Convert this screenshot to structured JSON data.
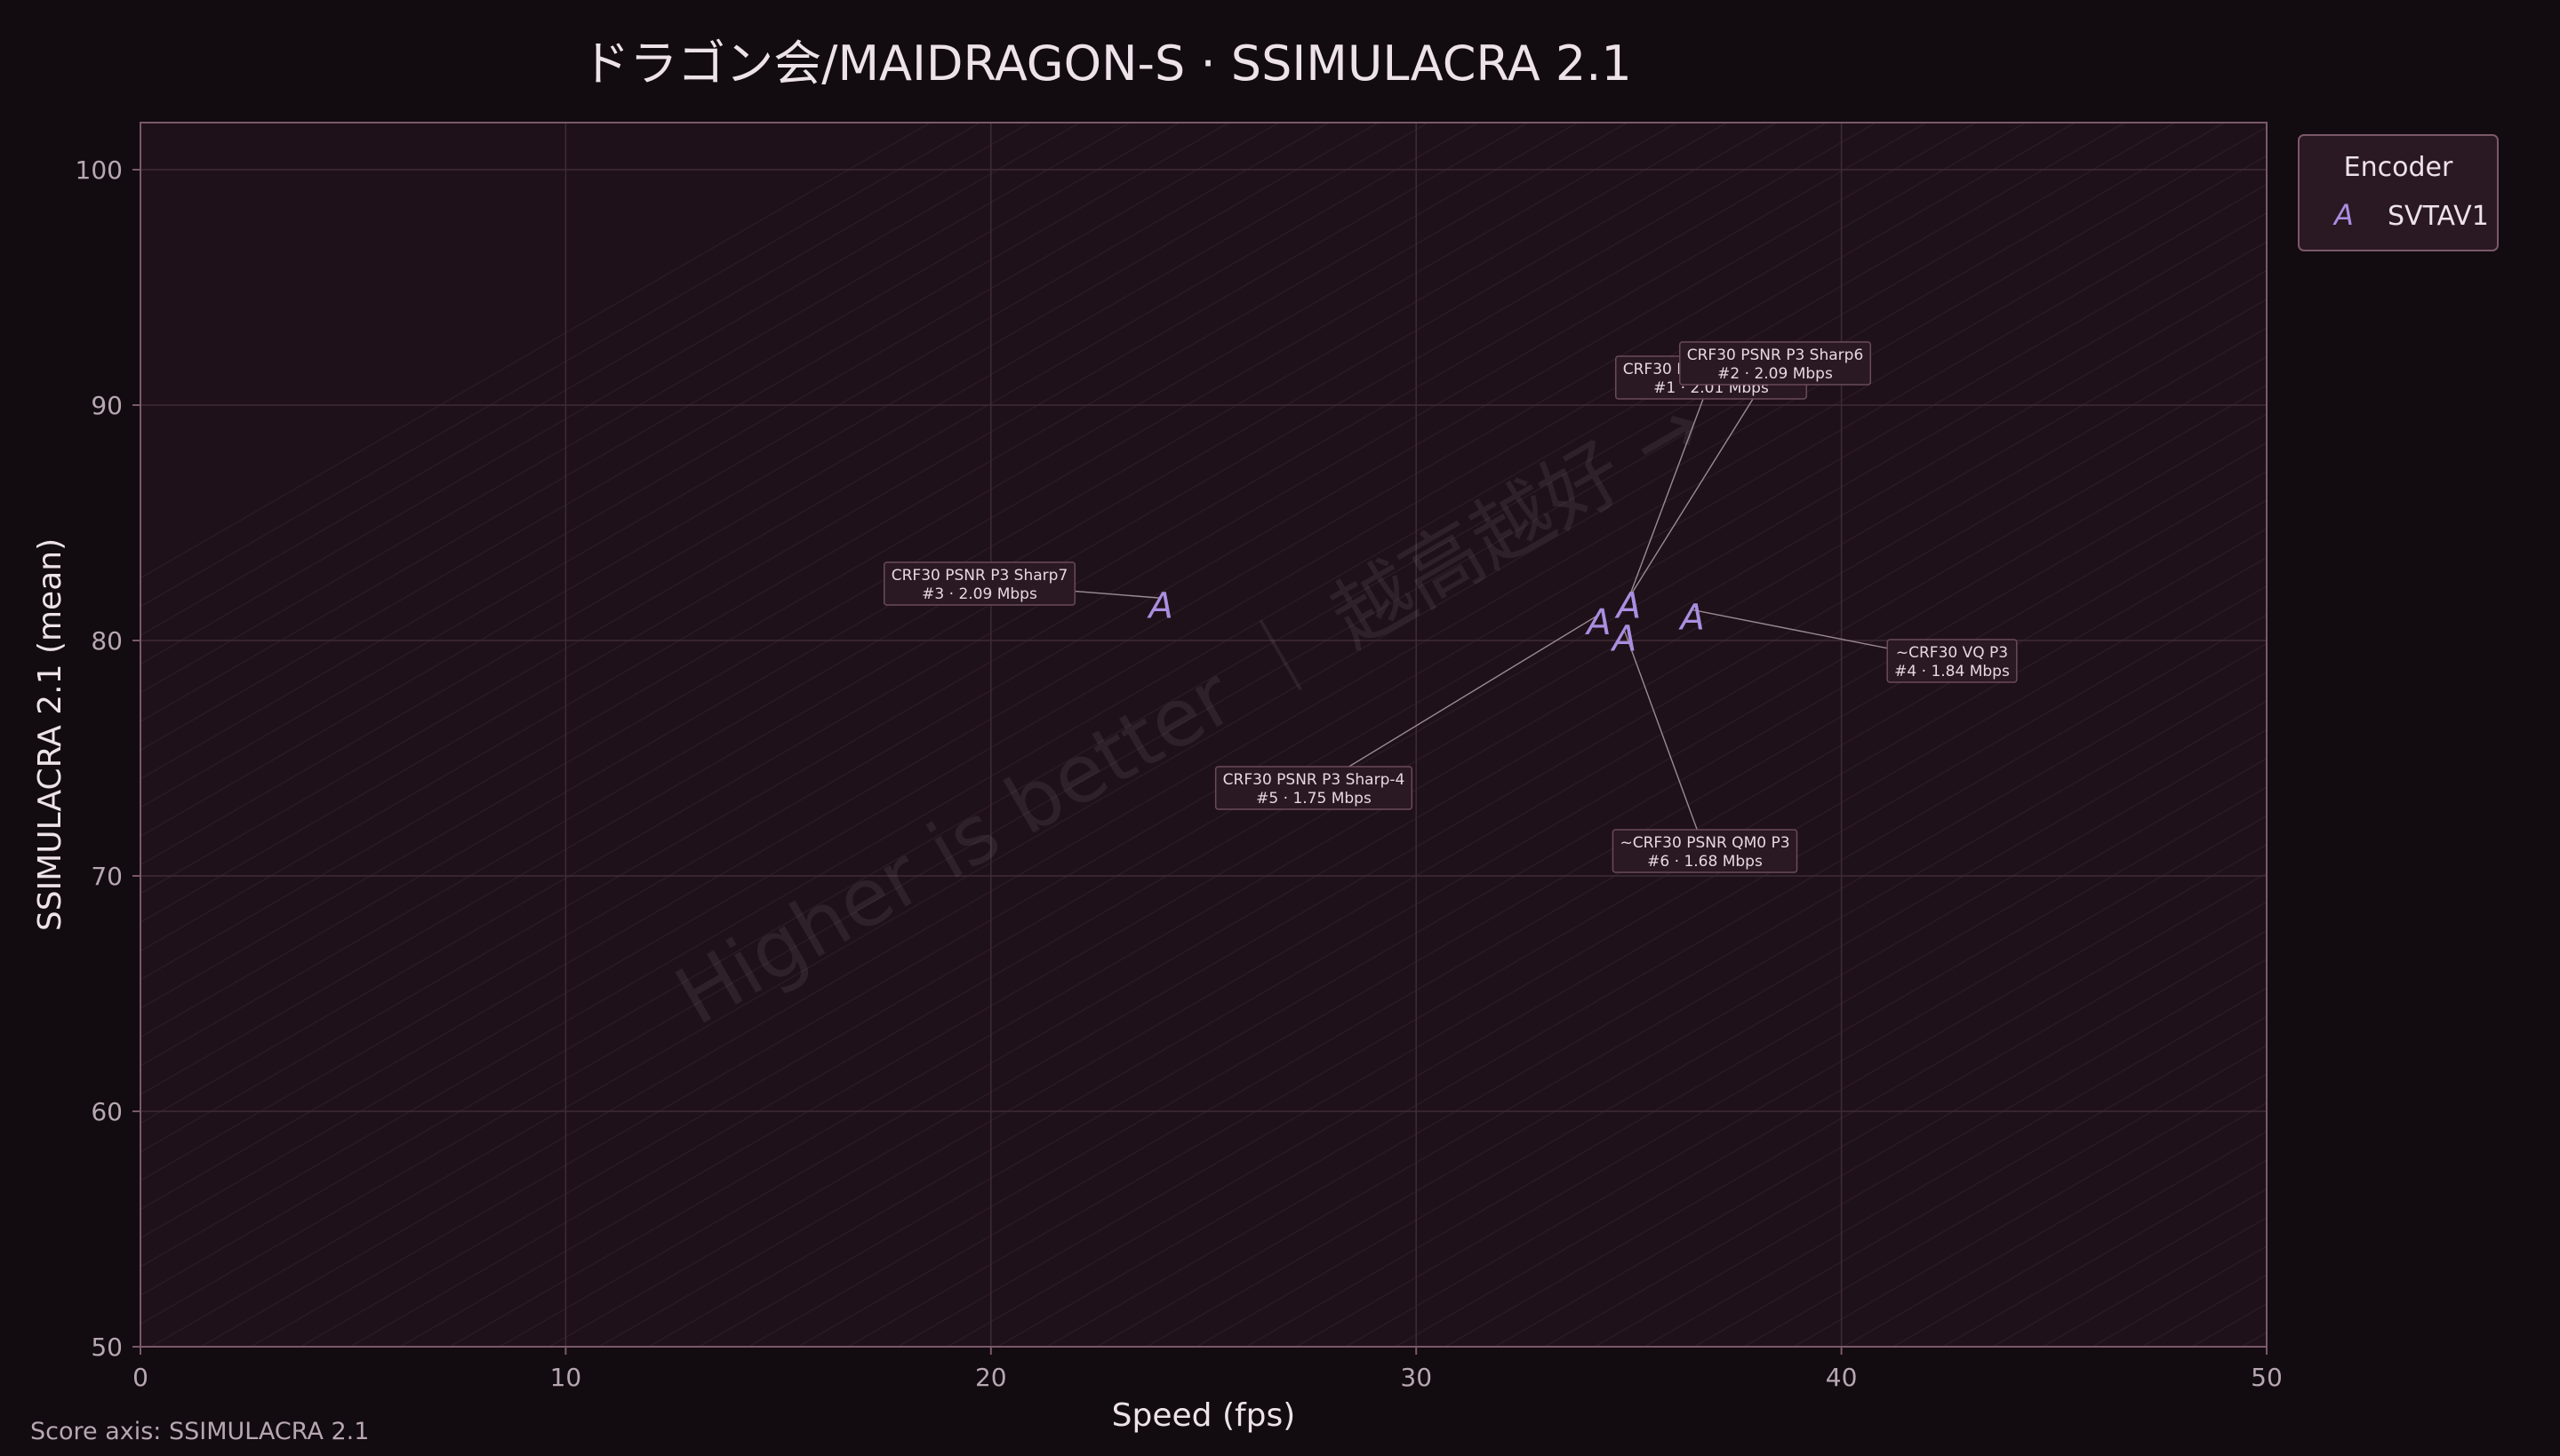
{
  "chart_data": {
    "type": "scatter",
    "title": "ドラゴン会/MAIDRAGON-S · SSIMULACRA 2.1",
    "xlabel": "Speed (fps)",
    "ylabel": "SSIMULACRA 2.1 (mean)",
    "xlim": [
      0,
      50
    ],
    "ylim": [
      50,
      102
    ],
    "xticks": [
      "0",
      "10",
      "20",
      "30",
      "40",
      "50"
    ],
    "yticks": [
      "50",
      "60",
      "70",
      "80",
      "90",
      "100"
    ],
    "grid": true,
    "watermark": "Higher is better ｜ 越高越好 →",
    "legend": {
      "title": "Encoder",
      "placement": "top-right, outside plot",
      "entries": [
        {
          "marker": "A",
          "label": "SVTAV1"
        }
      ]
    },
    "series": [
      {
        "name": "SVTAV1",
        "marker": "A",
        "color": "#a98ee0",
        "points": [
          {
            "x": 35.0,
            "y": 81.5,
            "label": "CRF30 PSNR P3 Sharp5",
            "rank_line": "#1 · 2.01 Mbps"
          },
          {
            "x": 35.0,
            "y": 81.5,
            "label": "CRF30 PSNR P3 Sharp6",
            "rank_line": "#2 · 2.09 Mbps"
          },
          {
            "x": 24.0,
            "y": 81.5,
            "label": "CRF30 PSNR P3 Sharp7",
            "rank_line": "#3 · 2.09 Mbps"
          },
          {
            "x": 36.5,
            "y": 81.0,
            "label": "~CRF30 VQ P3",
            "rank_line": "#4 · 1.84 Mbps"
          },
          {
            "x": 34.3,
            "y": 80.8,
            "label": "CRF30 PSNR P3 Sharp-4",
            "rank_line": "#5 · 1.75 Mbps"
          },
          {
            "x": 34.9,
            "y": 80.1,
            "label": "~CRF30 PSNR QM0 P3",
            "rank_line": "#6 · 1.68 Mbps"
          }
        ]
      }
    ],
    "footnote": "Score axis: SSIMULACRA 2.1"
  },
  "colors": {
    "figure_bg": "#120b0f",
    "plot_bg": "#1f1119",
    "marker": "#a98ee0",
    "text": "#ece2e8",
    "grid": "#3e2b36"
  }
}
